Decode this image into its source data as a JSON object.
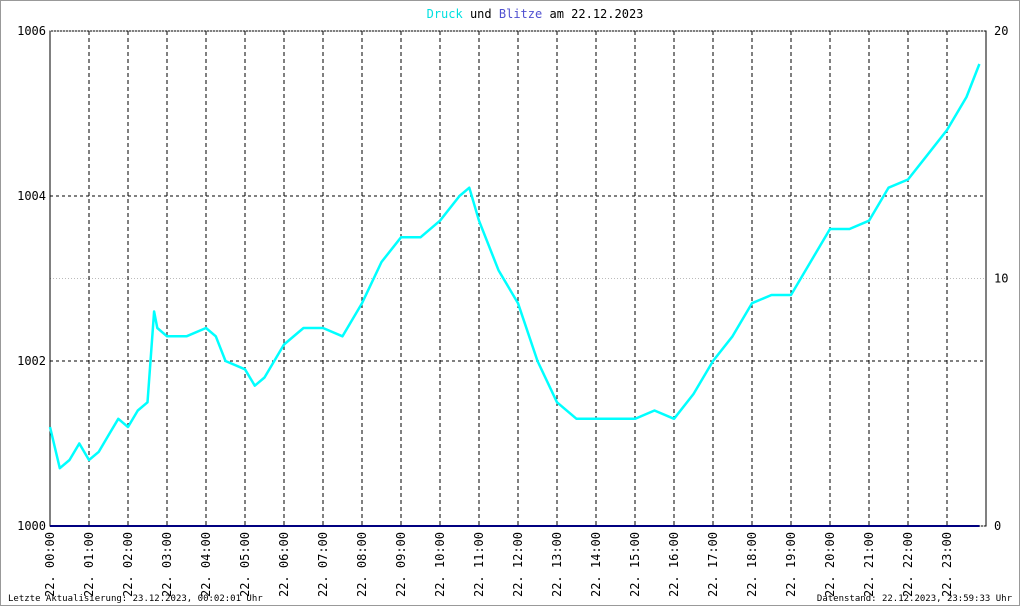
{
  "chart_data": {
    "type": "line",
    "title_connector": "und",
    "title_suffix": "am 22.12.2023",
    "footer_left": "Letzte Aktualisierung: 23.12.2023, 00:02:01 Uhr",
    "footer_right": "Datenstand: 22.12.2023, 23:59:33 Uhr",
    "x": [
      0,
      0.25,
      0.5,
      0.75,
      1,
      1.25,
      1.5,
      1.75,
      2,
      2.25,
      2.5,
      2.67,
      2.75,
      3,
      3.5,
      4,
      4.25,
      4.5,
      5,
      5.25,
      5.5,
      6,
      6.5,
      7,
      7.5,
      8,
      8.5,
      9,
      9.5,
      10,
      10.5,
      10.75,
      11,
      11.5,
      12,
      12.5,
      13,
      13.5,
      14,
      14.5,
      15,
      15.5,
      16,
      16.5,
      17,
      17.5,
      18,
      18.5,
      19,
      19.5,
      20,
      20.5,
      21,
      21.5,
      22,
      22.5,
      23,
      23.5,
      23.83
    ],
    "series": [
      {
        "name": "Druck",
        "color": "#00ffff",
        "values": [
          1001.2,
          1000.7,
          1000.8,
          1001.0,
          1000.8,
          1000.9,
          1001.1,
          1001.3,
          1001.2,
          1001.4,
          1001.5,
          1002.6,
          1002.4,
          1002.3,
          1002.3,
          1002.4,
          1002.3,
          1002.0,
          1001.9,
          1001.7,
          1001.8,
          1002.2,
          1002.4,
          1002.4,
          1002.3,
          1002.7,
          1003.2,
          1003.5,
          1003.5,
          1003.7,
          1004.0,
          1004.1,
          1003.7,
          1003.1,
          1002.7,
          1002.0,
          1001.5,
          1001.3,
          1001.3,
          1001.3,
          1001.3,
          1001.4,
          1001.3,
          1001.6,
          1002.0,
          1002.3,
          1002.7,
          1002.8,
          1002.8,
          1003.2,
          1003.6,
          1003.6,
          1003.7,
          1004.1,
          1004.2,
          1004.5,
          1004.8,
          1005.2,
          1005.6
        ]
      },
      {
        "name": "Blitze",
        "color": "#000080",
        "axis": "y2",
        "values": [
          0,
          0,
          0,
          0,
          0,
          0,
          0,
          0,
          0,
          0,
          0,
          0,
          0,
          0,
          0,
          0,
          0,
          0,
          0,
          0,
          0,
          0,
          0,
          0,
          0,
          0,
          0,
          0,
          0,
          0,
          0,
          0,
          0,
          0,
          0,
          0,
          0,
          0,
          0,
          0,
          0,
          0,
          0,
          0,
          0,
          0,
          0,
          0,
          0,
          0,
          0,
          0,
          0,
          0,
          0,
          0,
          0,
          0,
          0
        ]
      }
    ],
    "xlim": [
      0,
      24
    ],
    "xticks": [
      {
        "value": 0,
        "label": "22. 00:00"
      },
      {
        "value": 1,
        "label": "22. 01:00"
      },
      {
        "value": 2,
        "label": "22. 02:00"
      },
      {
        "value": 3,
        "label": "22. 03:00"
      },
      {
        "value": 4,
        "label": "22. 04:00"
      },
      {
        "value": 5,
        "label": "22. 05:00"
      },
      {
        "value": 6,
        "label": "22. 06:00"
      },
      {
        "value": 7,
        "label": "22. 07:00"
      },
      {
        "value": 8,
        "label": "22. 08:00"
      },
      {
        "value": 9,
        "label": "22. 09:00"
      },
      {
        "value": 10,
        "label": "22. 10:00"
      },
      {
        "value": 11,
        "label": "22. 11:00"
      },
      {
        "value": 12,
        "label": "22. 12:00"
      },
      {
        "value": 13,
        "label": "22. 13:00"
      },
      {
        "value": 14,
        "label": "22. 14:00"
      },
      {
        "value": 15,
        "label": "22. 15:00"
      },
      {
        "value": 16,
        "label": "22. 16:00"
      },
      {
        "value": 17,
        "label": "22. 17:00"
      },
      {
        "value": 18,
        "label": "22. 18:00"
      },
      {
        "value": 19,
        "label": "22. 19:00"
      },
      {
        "value": 20,
        "label": "22. 20:00"
      },
      {
        "value": 21,
        "label": "22. 21:00"
      },
      {
        "value": 22,
        "label": "22. 22:00"
      },
      {
        "value": 23,
        "label": "22. 23:00"
      }
    ],
    "ylim": [
      1000,
      1006
    ],
    "yticks": [
      1000,
      1002,
      1004,
      1006
    ],
    "y2lim": [
      0,
      20
    ],
    "y2ticks": [
      0,
      10,
      20
    ],
    "grid": true
  }
}
